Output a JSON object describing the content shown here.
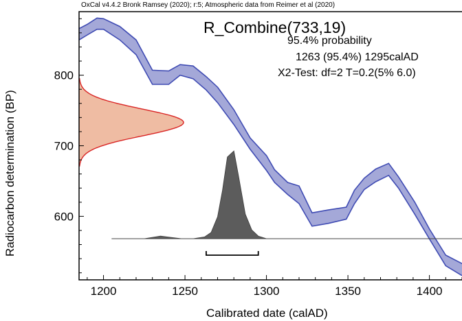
{
  "header": "OxCal v4.4.2 Bronk Ramsey (2020); r:5; Atmospheric data from Reimer et al (2020)",
  "chart_data": {
    "type": "area",
    "title": "R_Combine(733,19)",
    "annotations": [
      "95.4% probability",
      "1263 (95.4%) 1295calAD",
      "X2-Test: df=2 T=0.2(5% 6.0)"
    ],
    "xlabel": "Calibrated date (calAD)",
    "ylabel": "Radiocarbon determination (BP)",
    "xlim": [
      1185,
      1420
    ],
    "ylim": [
      510,
      890
    ],
    "xticks": [
      1200,
      1250,
      1300,
      1350,
      1400
    ],
    "yticks": [
      600,
      700,
      800
    ],
    "calibration_curve": {
      "x": [
        1185,
        1190,
        1196,
        1200,
        1210,
        1220,
        1230,
        1240,
        1247,
        1255,
        1263,
        1270,
        1280,
        1290,
        1300,
        1305,
        1313,
        1320,
        1328,
        1338,
        1349,
        1354,
        1360,
        1367,
        1375,
        1381,
        1391,
        1400,
        1410,
        1420
      ],
      "upper": [
        866,
        872,
        881,
        880,
        869,
        850,
        807,
        806,
        815,
        813,
        798,
        783,
        751,
        711,
        686,
        666,
        648,
        643,
        605,
        609,
        613,
        637,
        654,
        667,
        675,
        656,
        620,
        582,
        545,
        533
      ],
      "lower": [
        850,
        857,
        865,
        865,
        850,
        829,
        787,
        787,
        800,
        795,
        779,
        761,
        730,
        695,
        665,
        648,
        631,
        618,
        586,
        590,
        596,
        618,
        638,
        649,
        658,
        640,
        603,
        568,
        530,
        516
      ]
    },
    "radiocarbon_date": {
      "mean": 733,
      "sd": 19
    },
    "calibrated_distribution": {
      "x": [
        1205,
        1225,
        1235,
        1248,
        1255,
        1262,
        1266,
        1270,
        1273,
        1276,
        1280,
        1283,
        1287,
        1291,
        1295,
        1300,
        1320,
        1420
      ],
      "density": [
        0,
        0,
        0.03,
        0,
        0,
        0.02,
        0.07,
        0.25,
        0.55,
        0.93,
        1.0,
        0.7,
        0.28,
        0.1,
        0.03,
        0,
        0,
        0
      ]
    },
    "range_95": [
      1263,
      1295
    ]
  }
}
